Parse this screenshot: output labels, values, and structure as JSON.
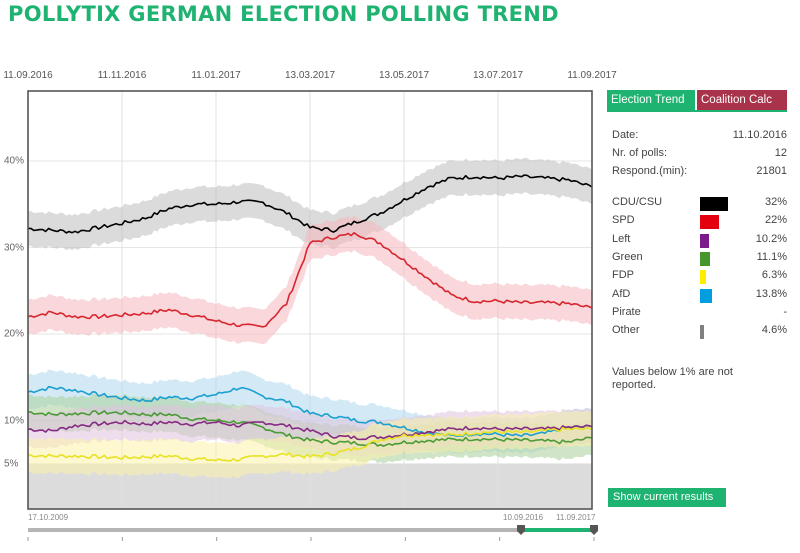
{
  "page_title": "POLLYTIX GERMAN ELECTION POLLING TREND",
  "tabs": [
    {
      "label": "Election Trend",
      "active": true
    },
    {
      "label": "Coalition Calc",
      "active": false
    }
  ],
  "info": {
    "date_label": "Date:",
    "date_value": "11.10.2016",
    "polls_label": "Nr. of polls:",
    "polls_value": "12",
    "respond_label": "Respond.(min):",
    "respond_value": "21801"
  },
  "parties": [
    {
      "name": "CDU/CSU",
      "value_text": "32%",
      "value": 32,
      "color": "#000000"
    },
    {
      "name": "SPD",
      "value_text": "22%",
      "value": 22,
      "color": "#e3000f"
    },
    {
      "name": "Left",
      "value_text": "10.2%",
      "value": 10.2,
      "color": "#7b1a8a"
    },
    {
      "name": "Green",
      "value_text": "11.1%",
      "value": 11.1,
      "color": "#46962b"
    },
    {
      "name": "FDP",
      "value_text": "6.3%",
      "value": 6.3,
      "color": "#ffed00"
    },
    {
      "name": "AfD",
      "value_text": "13.8%",
      "value": 13.8,
      "color": "#009ee0"
    },
    {
      "name": "Pirate",
      "value_text": "-",
      "value": null,
      "color": "#ff8800"
    },
    {
      "name": "Other",
      "value_text": "4.6%",
      "value": 4.6,
      "color": "#808080"
    }
  ],
  "note": "Values below 1% are not reported.",
  "show_current_button": "Show current results",
  "slider": {
    "start_label": "17.10.2009",
    "range_start_label": "10.09.2016",
    "range_end_label": "11.09.2017",
    "accent": "#1fb371"
  },
  "chart_data": {
    "type": "line",
    "title": "POLLYTIX GERMAN ELECTION POLLING TREND",
    "xlabel": "",
    "ylabel": "",
    "x_ticks": [
      "11.09.2016",
      "11.11.2016",
      "11.01.2017",
      "13.03.2017",
      "13.05.2017",
      "13.07.2017",
      "11.09.2017"
    ],
    "y_ticks": [
      "5%",
      "10%",
      "20%",
      "30%",
      "40%"
    ],
    "y_tick_values": [
      5,
      10,
      20,
      30,
      40
    ],
    "ylim": [
      0,
      46
    ],
    "threshold": 5,
    "grid": true,
    "band_halfwidth": 2.0,
    "x": [
      0,
      0.5,
      1,
      1.5,
      2,
      2.5,
      3,
      3.5,
      4,
      4.5,
      5,
      5.5,
      6,
      6.5,
      7,
      7.5,
      8,
      8.5,
      9,
      9.5,
      10,
      10.5,
      11,
      11.5,
      12
    ],
    "x_unit": "months since 11.09.2016",
    "series": [
      {
        "name": "CDU/CSU",
        "color": "#000000",
        "band": "#bdbdbd",
        "values": [
          32.2,
          32.0,
          31.8,
          32.3,
          32.8,
          33.4,
          34.5,
          35.0,
          35.0,
          35.3,
          35.2,
          34.0,
          32.3,
          32.0,
          33.0,
          34.0,
          35.5,
          37.0,
          38.0,
          38.2,
          38.0,
          38.2,
          38.0,
          37.8,
          37.0
        ]
      },
      {
        "name": "SPD",
        "color": "#d7262f",
        "band": "#f4b6bb",
        "values": [
          22.0,
          22.5,
          22.0,
          22.0,
          22.2,
          22.4,
          22.8,
          22.2,
          21.5,
          21.0,
          20.8,
          23.5,
          30.5,
          31.2,
          31.6,
          30.5,
          28.5,
          26.5,
          24.5,
          23.8,
          23.8,
          23.6,
          23.6,
          23.5,
          23.0
        ]
      },
      {
        "name": "AfD",
        "color": "#1a9fd0",
        "band": "#aed8ef",
        "values": [
          13.3,
          13.8,
          13.5,
          13.0,
          12.6,
          12.3,
          12.7,
          12.6,
          13.0,
          13.8,
          12.8,
          12.2,
          10.8,
          10.5,
          10.0,
          9.8,
          9.2,
          8.6,
          8.2,
          8.5,
          8.4,
          8.2,
          8.5,
          9.2,
          9.3
        ]
      },
      {
        "name": "Green",
        "color": "#4a9a35",
        "band": "#a9cf9a",
        "values": [
          11.0,
          10.7,
          10.8,
          10.9,
          10.9,
          10.7,
          10.7,
          10.2,
          10.0,
          9.8,
          9.2,
          8.3,
          7.7,
          7.5,
          7.4,
          7.2,
          7.5,
          7.7,
          7.8,
          7.9,
          7.8,
          7.7,
          7.6,
          7.5,
          8.0
        ]
      },
      {
        "name": "Left",
        "color": "#862a83",
        "band": "#e0c2de",
        "values": [
          9.0,
          8.8,
          9.4,
          9.6,
          9.8,
          9.6,
          9.8,
          9.6,
          9.8,
          9.4,
          9.8,
          9.4,
          8.8,
          8.2,
          8.0,
          8.1,
          8.4,
          8.7,
          9.0,
          9.2,
          9.0,
          9.0,
          9.0,
          9.2,
          9.3
        ]
      },
      {
        "name": "FDP",
        "color": "#e8e224",
        "band": "#fbf3a8",
        "values": [
          6.0,
          5.9,
          5.9,
          5.8,
          5.7,
          5.8,
          5.9,
          5.6,
          5.4,
          5.5,
          5.9,
          6.1,
          5.8,
          6.2,
          6.8,
          7.8,
          8.3,
          8.4,
          8.3,
          8.6,
          8.7,
          8.6,
          8.8,
          9.0,
          9.0
        ]
      }
    ]
  }
}
